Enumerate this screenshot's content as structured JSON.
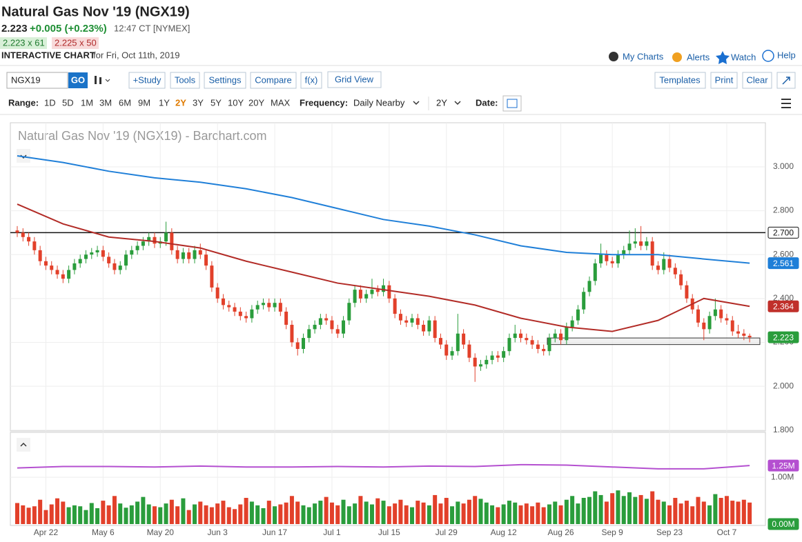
{
  "header": {
    "title": "Natural Gas Nov '19 (NGX19)",
    "last": "2.223",
    "change": "+0.005 (+0.23%)",
    "time": "12:47 CT [NYMEX]",
    "bid": "2.223 x 61",
    "ask": "2.225 x 50",
    "label": "INTERACTIVE CHART",
    "date": "for Fri, Oct 11th, 2019",
    "links": [
      "My Charts",
      "Alerts",
      "Watch",
      "Help"
    ]
  },
  "toolbar": {
    "symbol": "NGX19",
    "go": "GO",
    "buttons": [
      "+Study",
      "Tools",
      "Settings",
      "Compare",
      "f(x)",
      "Grid View"
    ],
    "right_buttons": [
      "Templates",
      "Print",
      "Clear"
    ]
  },
  "range_bar": {
    "label": "Range:",
    "ranges": [
      "1D",
      "5D",
      "1M",
      "3M",
      "6M",
      "9M",
      "1Y",
      "2Y",
      "3Y",
      "5Y",
      "10Y",
      "20Y",
      "MAX"
    ],
    "active": 7,
    "frequency_label": "Frequency:",
    "frequency": "Daily Nearby",
    "period": "2Y",
    "date_label": "Date:"
  },
  "chart_data": {
    "type": "candlestick",
    "title": "Natural Gas Nov '19 (NGX19) - Barchart.com",
    "grid": true,
    "ylim": [
      1.796,
      3.201
    ],
    "yticks": [
      {
        "value": 1.8,
        "label": "1.800"
      },
      {
        "value": 2,
        "label": "2.000"
      },
      {
        "value": 2.2,
        "label": "2.200"
      },
      {
        "value": 2.4,
        "label": "2.400"
      },
      {
        "value": 2.6,
        "label": "2.600"
      },
      {
        "value": 2.8,
        "label": "2.800"
      },
      {
        "value": 3,
        "label": "3.000"
      }
    ],
    "xticks": [
      {
        "value": 5,
        "label": "Apr 22"
      },
      {
        "value": 15,
        "label": "May 6"
      },
      {
        "value": 25,
        "label": "May 20"
      },
      {
        "value": 35,
        "label": "Jun 3"
      },
      {
        "value": 45,
        "label": "Jun 17"
      },
      {
        "value": 55,
        "label": "Jul 1"
      },
      {
        "value": 65,
        "label": "Jul 15"
      },
      {
        "value": 75,
        "label": "Jul 29"
      },
      {
        "value": 85,
        "label": "Aug 12"
      },
      {
        "value": 95,
        "label": "Aug 26"
      },
      {
        "value": 104,
        "label": "Sep 9"
      },
      {
        "value": 114,
        "label": "Sep 23"
      },
      {
        "value": 124,
        "label": "Oct 7"
      }
    ],
    "up_color": "#2a9d3c",
    "down_color": "#e2402a",
    "ohlc": [
      [
        2.71,
        2.73,
        2.68,
        2.7
      ],
      [
        2.7,
        2.72,
        2.66,
        2.68
      ],
      [
        2.68,
        2.7,
        2.64,
        2.66
      ],
      [
        2.66,
        2.68,
        2.6,
        2.62
      ],
      [
        2.62,
        2.64,
        2.55,
        2.57
      ],
      [
        2.57,
        2.59,
        2.53,
        2.55
      ],
      [
        2.55,
        2.57,
        2.51,
        2.53
      ],
      [
        2.53,
        2.55,
        2.49,
        2.51
      ],
      [
        2.51,
        2.53,
        2.47,
        2.49
      ],
      [
        2.49,
        2.55,
        2.47,
        2.53
      ],
      [
        2.53,
        2.58,
        2.51,
        2.56
      ],
      [
        2.56,
        2.6,
        2.54,
        2.58
      ],
      [
        2.58,
        2.62,
        2.56,
        2.6
      ],
      [
        2.6,
        2.63,
        2.58,
        2.61
      ],
      [
        2.61,
        2.64,
        2.59,
        2.62
      ],
      [
        2.62,
        2.64,
        2.57,
        2.59
      ],
      [
        2.59,
        2.61,
        2.54,
        2.56
      ],
      [
        2.56,
        2.58,
        2.51,
        2.53
      ],
      [
        2.53,
        2.57,
        2.51,
        2.55
      ],
      [
        2.55,
        2.62,
        2.53,
        2.6
      ],
      [
        2.6,
        2.64,
        2.58,
        2.62
      ],
      [
        2.62,
        2.66,
        2.6,
        2.64
      ],
      [
        2.64,
        2.68,
        2.62,
        2.66
      ],
      [
        2.66,
        2.7,
        2.64,
        2.68
      ],
      [
        2.68,
        2.7,
        2.63,
        2.65
      ],
      [
        2.65,
        2.68,
        2.63,
        2.66
      ],
      [
        2.66,
        2.75,
        2.64,
        2.7
      ],
      [
        2.7,
        2.72,
        2.6,
        2.62
      ],
      [
        2.62,
        2.64,
        2.56,
        2.58
      ],
      [
        2.58,
        2.63,
        2.56,
        2.61
      ],
      [
        2.61,
        2.63,
        2.56,
        2.58
      ],
      [
        2.58,
        2.64,
        2.56,
        2.62
      ],
      [
        2.62,
        2.65,
        2.58,
        2.6
      ],
      [
        2.6,
        2.62,
        2.53,
        2.55
      ],
      [
        2.55,
        2.57,
        2.43,
        2.45
      ],
      [
        2.45,
        2.47,
        2.38,
        2.4
      ],
      [
        2.4,
        2.42,
        2.35,
        2.37
      ],
      [
        2.37,
        2.39,
        2.34,
        2.36
      ],
      [
        2.36,
        2.38,
        2.32,
        2.34
      ],
      [
        2.34,
        2.36,
        2.3,
        2.32
      ],
      [
        2.32,
        2.34,
        2.29,
        2.31
      ],
      [
        2.31,
        2.37,
        2.29,
        2.35
      ],
      [
        2.35,
        2.39,
        2.33,
        2.37
      ],
      [
        2.37,
        2.4,
        2.35,
        2.38
      ],
      [
        2.38,
        2.4,
        2.34,
        2.36
      ],
      [
        2.36,
        2.4,
        2.34,
        2.38
      ],
      [
        2.38,
        2.4,
        2.32,
        2.34
      ],
      [
        2.34,
        2.36,
        2.26,
        2.28
      ],
      [
        2.28,
        2.3,
        2.18,
        2.2
      ],
      [
        2.2,
        2.22,
        2.14,
        2.17
      ],
      [
        2.17,
        2.24,
        2.15,
        2.22
      ],
      [
        2.22,
        2.28,
        2.2,
        2.26
      ],
      [
        2.26,
        2.3,
        2.24,
        2.28
      ],
      [
        2.28,
        2.33,
        2.26,
        2.31
      ],
      [
        2.31,
        2.33,
        2.28,
        2.3
      ],
      [
        2.3,
        2.32,
        2.24,
        2.26
      ],
      [
        2.26,
        2.28,
        2.22,
        2.24
      ],
      [
        2.24,
        2.32,
        2.22,
        2.3
      ],
      [
        2.3,
        2.4,
        2.28,
        2.38
      ],
      [
        2.38,
        2.46,
        2.36,
        2.44
      ],
      [
        2.44,
        2.46,
        2.38,
        2.4
      ],
      [
        2.4,
        2.44,
        2.38,
        2.42
      ],
      [
        2.42,
        2.49,
        2.4,
        2.44
      ],
      [
        2.44,
        2.46,
        2.41,
        2.43
      ],
      [
        2.43,
        2.49,
        2.41,
        2.46
      ],
      [
        2.46,
        2.48,
        2.38,
        2.4
      ],
      [
        2.4,
        2.42,
        2.31,
        2.33
      ],
      [
        2.33,
        2.35,
        2.28,
        2.3
      ],
      [
        2.3,
        2.32,
        2.27,
        2.29
      ],
      [
        2.29,
        2.33,
        2.27,
        2.31
      ],
      [
        2.31,
        2.33,
        2.26,
        2.28
      ],
      [
        2.28,
        2.3,
        2.23,
        2.25
      ],
      [
        2.25,
        2.32,
        2.23,
        2.3
      ],
      [
        2.3,
        2.32,
        2.2,
        2.22
      ],
      [
        2.22,
        2.24,
        2.17,
        2.19
      ],
      [
        2.19,
        2.21,
        2.12,
        2.14
      ],
      [
        2.14,
        2.18,
        2.12,
        2.16
      ],
      [
        2.16,
        2.33,
        2.14,
        2.24
      ],
      [
        2.24,
        2.26,
        2.17,
        2.19
      ],
      [
        2.19,
        2.21,
        2.11,
        2.13
      ],
      [
        2.13,
        2.15,
        2.02,
        2.09
      ],
      [
        2.09,
        2.12,
        2.07,
        2.1
      ],
      [
        2.1,
        2.14,
        2.08,
        2.12
      ],
      [
        2.12,
        2.16,
        2.1,
        2.14
      ],
      [
        2.14,
        2.16,
        2.11,
        2.13
      ],
      [
        2.13,
        2.18,
        2.11,
        2.16
      ],
      [
        2.16,
        2.24,
        2.14,
        2.22
      ],
      [
        2.22,
        2.28,
        2.2,
        2.24
      ],
      [
        2.24,
        2.26,
        2.2,
        2.22
      ],
      [
        2.22,
        2.24,
        2.19,
        2.21
      ],
      [
        2.21,
        2.23,
        2.17,
        2.19
      ],
      [
        2.19,
        2.21,
        2.15,
        2.17
      ],
      [
        2.17,
        2.19,
        2.14,
        2.16
      ],
      [
        2.16,
        2.24,
        2.14,
        2.22
      ],
      [
        2.22,
        2.26,
        2.2,
        2.24
      ],
      [
        2.24,
        2.26,
        2.19,
        2.21
      ],
      [
        2.21,
        2.29,
        2.19,
        2.27
      ],
      [
        2.27,
        2.32,
        2.25,
        2.3
      ],
      [
        2.3,
        2.37,
        2.28,
        2.35
      ],
      [
        2.35,
        2.45,
        2.33,
        2.43
      ],
      [
        2.43,
        2.5,
        2.41,
        2.48
      ],
      [
        2.48,
        2.58,
        2.46,
        2.56
      ],
      [
        2.56,
        2.65,
        2.54,
        2.6
      ],
      [
        2.6,
        2.62,
        2.55,
        2.57
      ],
      [
        2.57,
        2.59,
        2.54,
        2.56
      ],
      [
        2.56,
        2.62,
        2.54,
        2.6
      ],
      [
        2.6,
        2.64,
        2.58,
        2.62
      ],
      [
        2.62,
        2.71,
        2.6,
        2.65
      ],
      [
        2.65,
        2.72,
        2.63,
        2.66
      ],
      [
        2.66,
        2.73,
        2.62,
        2.64
      ],
      [
        2.64,
        2.68,
        2.62,
        2.66
      ],
      [
        2.66,
        2.68,
        2.53,
        2.55
      ],
      [
        2.55,
        2.57,
        2.51,
        2.53
      ],
      [
        2.53,
        2.61,
        2.51,
        2.58
      ],
      [
        2.58,
        2.6,
        2.52,
        2.54
      ],
      [
        2.54,
        2.56,
        2.49,
        2.51
      ],
      [
        2.51,
        2.53,
        2.44,
        2.46
      ],
      [
        2.46,
        2.48,
        2.38,
        2.4
      ],
      [
        2.4,
        2.42,
        2.33,
        2.35
      ],
      [
        2.35,
        2.37,
        2.27,
        2.29
      ],
      [
        2.29,
        2.31,
        2.21,
        2.26
      ],
      [
        2.26,
        2.34,
        2.24,
        2.32
      ],
      [
        2.32,
        2.4,
        2.3,
        2.35
      ],
      [
        2.35,
        2.37,
        2.29,
        2.31
      ],
      [
        2.31,
        2.33,
        2.28,
        2.3
      ],
      [
        2.3,
        2.32,
        2.23,
        2.25
      ],
      [
        2.25,
        2.28,
        2.22,
        2.24
      ],
      [
        2.24,
        2.26,
        2.21,
        2.23
      ],
      [
        2.23,
        2.24,
        2.2,
        2.223
      ]
    ],
    "series": [
      {
        "color": "#1f7fd8",
        "x": [
          0,
          8,
          16,
          24,
          32,
          40,
          48,
          56,
          64,
          72,
          80,
          88,
          96,
          104,
          112,
          120,
          128
        ],
        "values": [
          3.05,
          3.02,
          2.98,
          2.95,
          2.93,
          2.9,
          2.86,
          2.81,
          2.76,
          2.73,
          2.69,
          2.64,
          2.61,
          2.6,
          2.6,
          2.58,
          2.561
        ]
      },
      {
        "color": "#b22b26",
        "x": [
          0,
          8,
          16,
          24,
          32,
          40,
          48,
          56,
          64,
          72,
          80,
          88,
          96,
          104,
          112,
          120,
          128
        ],
        "values": [
          2.83,
          2.74,
          2.68,
          2.66,
          2.63,
          2.57,
          2.52,
          2.47,
          2.44,
          2.41,
          2.37,
          2.31,
          2.27,
          2.25,
          2.3,
          2.4,
          2.364
        ]
      }
    ],
    "level": {
      "value": 2.7,
      "label": "2.700"
    },
    "zone": [
      2.19,
      2.22
    ],
    "tags": [
      {
        "value": 2.561,
        "label": "2.561",
        "color": "#1f7fd8"
      },
      {
        "value": 2.364,
        "label": "2.364",
        "color": "#c0302b"
      },
      {
        "value": 2.223,
        "label": "2.223",
        "color": "#2a9d3c"
      }
    ],
    "volume": {
      "ylim": [
        0,
        1.96
      ],
      "yticks": [
        {
          "value": 1,
          "label": "1.00M"
        }
      ],
      "values": [
        0.45,
        0.4,
        0.35,
        0.38,
        0.52,
        0.3,
        0.42,
        0.55,
        0.48,
        0.36,
        0.4,
        0.38,
        0.3,
        0.45,
        0.34,
        0.5,
        0.4,
        0.6,
        0.44,
        0.35,
        0.4,
        0.48,
        0.58,
        0.42,
        0.38,
        0.36,
        0.44,
        0.52,
        0.38,
        0.55,
        0.3,
        0.42,
        0.48,
        0.4,
        0.36,
        0.44,
        0.5,
        0.36,
        0.32,
        0.42,
        0.56,
        0.48,
        0.4,
        0.34,
        0.5,
        0.38,
        0.42,
        0.46,
        0.6,
        0.48,
        0.4,
        0.36,
        0.44,
        0.5,
        0.58,
        0.46,
        0.4,
        0.52,
        0.38,
        0.44,
        0.6,
        0.48,
        0.42,
        0.55,
        0.5,
        0.38,
        0.44,
        0.52,
        0.4,
        0.36,
        0.5,
        0.46,
        0.4,
        0.62,
        0.44,
        0.56,
        0.38,
        0.48,
        0.44,
        0.52,
        0.6,
        0.54,
        0.46,
        0.4,
        0.36,
        0.42,
        0.5,
        0.46,
        0.4,
        0.44,
        0.38,
        0.46,
        0.36,
        0.42,
        0.48,
        0.4,
        0.52,
        0.6,
        0.44,
        0.56,
        0.58,
        0.7,
        0.62,
        0.48,
        0.66,
        0.72,
        0.6,
        0.68,
        0.58,
        0.62,
        0.54,
        0.7,
        0.52,
        0.48,
        0.4,
        0.56,
        0.44,
        0.5,
        0.38,
        0.58,
        0.48,
        0.4,
        0.64,
        0.56,
        0.6,
        0.5,
        0.48,
        0.52,
        0.46
      ],
      "ma": {
        "color": "#b44fd0",
        "x": [
          0,
          8,
          16,
          24,
          32,
          40,
          48,
          56,
          64,
          72,
          80,
          88,
          96,
          104,
          112,
          120,
          128
        ],
        "values": [
          1.2,
          1.23,
          1.23,
          1.22,
          1.24,
          1.22,
          1.22,
          1.23,
          1.22,
          1.24,
          1.23,
          1.27,
          1.26,
          1.22,
          1.18,
          1.18,
          1.25
        ]
      },
      "tags": [
        {
          "value": 1.25,
          "label": "1.25M",
          "color": "#b44fd0"
        },
        {
          "value": 0,
          "label": "0.00M",
          "color": "#2a9d3c"
        }
      ]
    }
  }
}
